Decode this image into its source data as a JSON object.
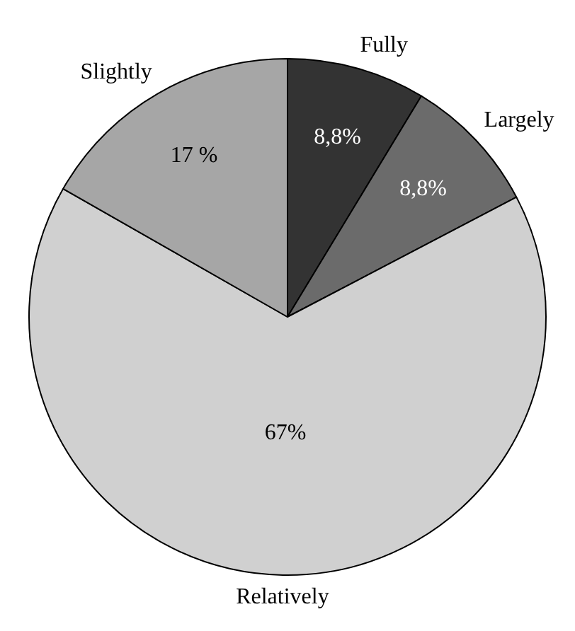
{
  "chart_data": {
    "type": "pie",
    "categories": [
      "Fully",
      "Largely",
      "Relatively",
      "Slightly"
    ],
    "values": [
      8.8,
      8.8,
      67,
      17
    ],
    "value_labels": [
      "8,8%",
      "8,8%",
      "67%",
      "17 %"
    ],
    "colors": [
      "#333333",
      "#6b6b6b",
      "#d0d0d0",
      "#a6a6a6"
    ],
    "legend": false
  }
}
